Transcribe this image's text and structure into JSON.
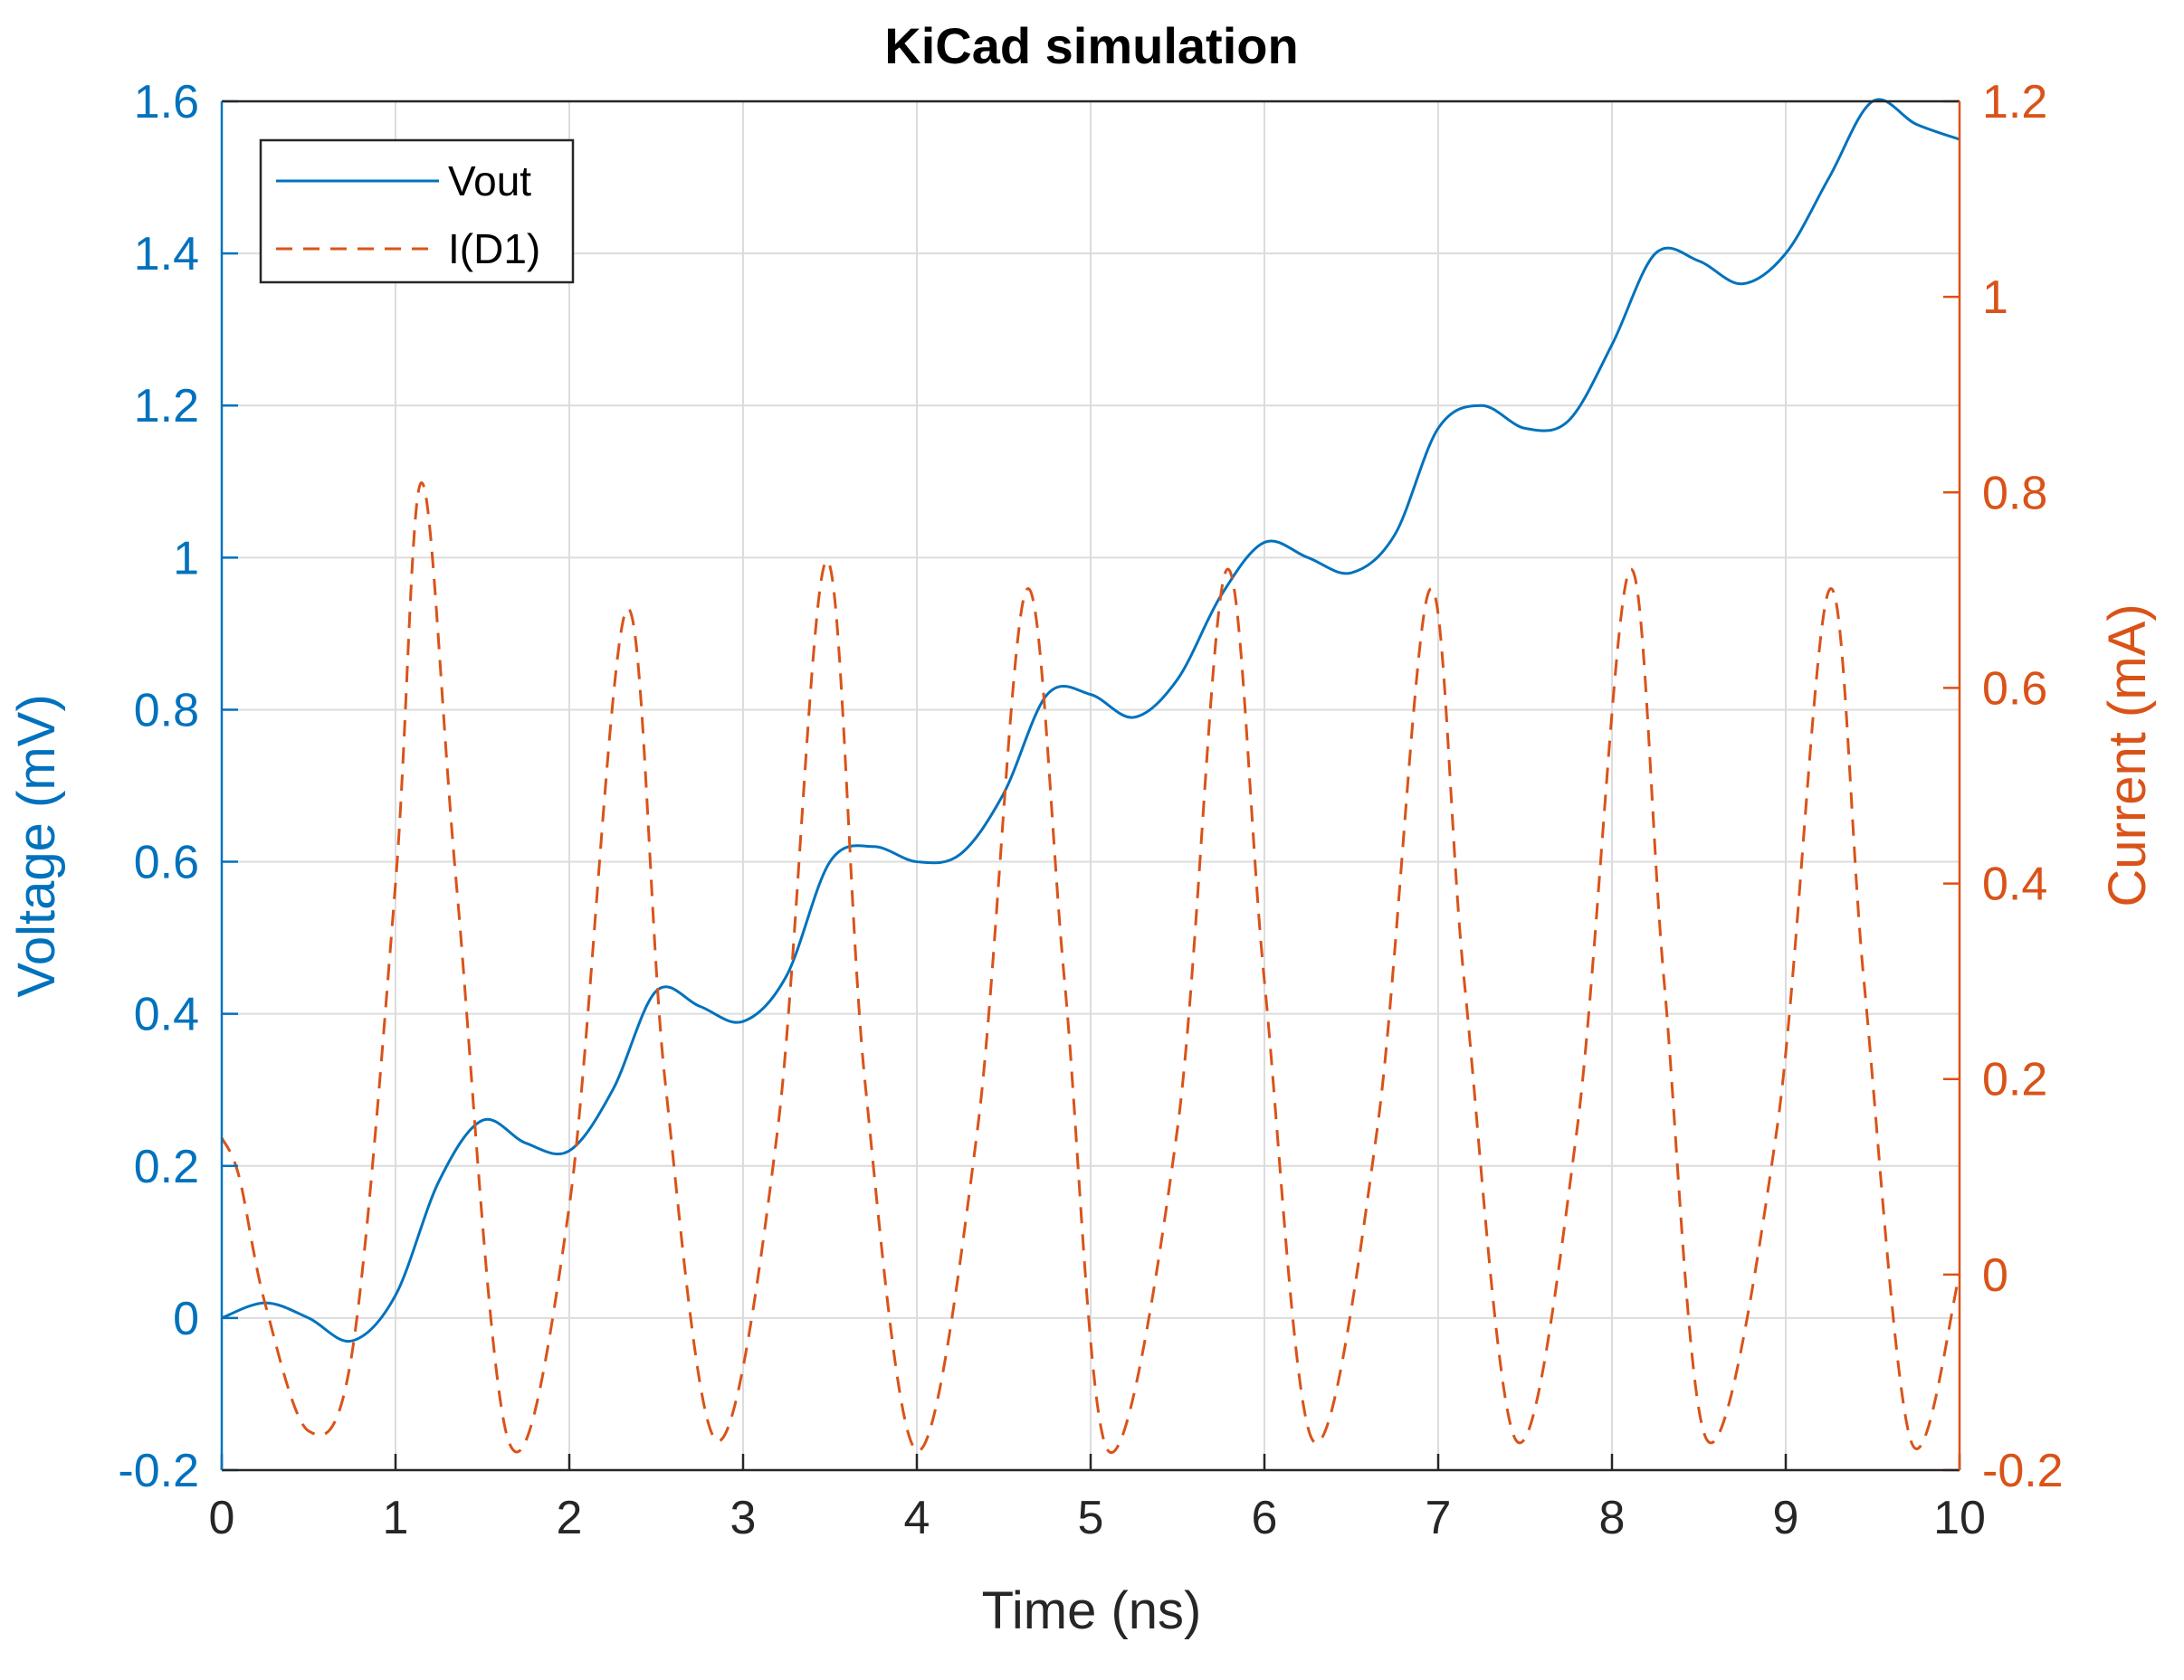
{
  "chart_data": {
    "type": "line",
    "title": "KiCad simulation",
    "xlabel": "Time (ns)",
    "ylabel_left": "Voltage (mV)",
    "ylabel_right": "Current (mA)",
    "xlim": [
      0,
      10
    ],
    "ylim_left": [
      -0.2,
      1.6
    ],
    "ylim_right": [
      -0.2,
      1.2
    ],
    "xticks": [
      "0",
      "1",
      "2",
      "3",
      "4",
      "5",
      "6",
      "7",
      "8",
      "9",
      "10"
    ],
    "yticks_left": [
      "-0.2",
      "0",
      "0.2",
      "0.4",
      "0.6",
      "0.8",
      "1",
      "1.2",
      "1.4",
      "1.6"
    ],
    "yticks_right": [
      "-0.2",
      "0",
      "0.2",
      "0.4",
      "0.6",
      "0.8",
      "1",
      "1.2"
    ],
    "grid": true,
    "legend_position": "top-left",
    "colors": {
      "left": "#0072BD",
      "right": "#D95319",
      "grid": "#DCDCDC",
      "axes": "#262626"
    },
    "series": [
      {
        "name": "Vout",
        "axis": "left",
        "style": "solid",
        "x": [
          0,
          0.25,
          0.5,
          0.75,
          1.0,
          1.25,
          1.5,
          1.75,
          2.0,
          2.25,
          2.5,
          2.75,
          3.0,
          3.25,
          3.5,
          3.75,
          4.0,
          4.25,
          4.5,
          4.75,
          5.0,
          5.25,
          5.5,
          5.75,
          6.0,
          6.25,
          6.5,
          6.75,
          7.0,
          7.25,
          7.5,
          7.75,
          8.0,
          8.25,
          8.5,
          8.75,
          9.0,
          9.25,
          9.5,
          9.75,
          10.0
        ],
        "y": [
          0.0,
          0.02,
          0.0,
          -0.03,
          0.03,
          0.18,
          0.26,
          0.23,
          0.22,
          0.3,
          0.43,
          0.41,
          0.39,
          0.45,
          0.6,
          0.62,
          0.6,
          0.61,
          0.69,
          0.82,
          0.82,
          0.79,
          0.84,
          0.95,
          1.02,
          1.0,
          0.98,
          1.03,
          1.17,
          1.2,
          1.17,
          1.18,
          1.28,
          1.4,
          1.39,
          1.36,
          1.4,
          1.5,
          1.6,
          1.57,
          1.55
        ]
      },
      {
        "name": "I(D1)",
        "axis": "right",
        "style": "dashed",
        "x": [
          0,
          0.1,
          0.25,
          0.5,
          0.75,
          1.0,
          1.15,
          1.35,
          1.65,
          2.0,
          2.33,
          2.55,
          2.85,
          3.2,
          3.48,
          3.7,
          4.0,
          4.35,
          4.63,
          4.85,
          5.1,
          5.5,
          5.78,
          6.0,
          6.28,
          6.65,
          6.95,
          7.15,
          7.45,
          7.8,
          8.1,
          8.3,
          8.55,
          8.95,
          9.25,
          9.45,
          9.72,
          10.0
        ],
        "y": [
          0.14,
          0.1,
          -0.03,
          -0.16,
          -0.08,
          0.4,
          0.81,
          0.4,
          -0.17,
          0.07,
          0.68,
          0.2,
          -0.17,
          0.15,
          0.73,
          0.2,
          -0.18,
          0.15,
          0.7,
          0.3,
          -0.18,
          0.15,
          0.72,
          0.3,
          -0.17,
          0.15,
          0.7,
          0.3,
          -0.17,
          0.15,
          0.72,
          0.3,
          -0.17,
          0.15,
          0.7,
          0.3,
          -0.17,
          0.0
        ]
      }
    ]
  }
}
